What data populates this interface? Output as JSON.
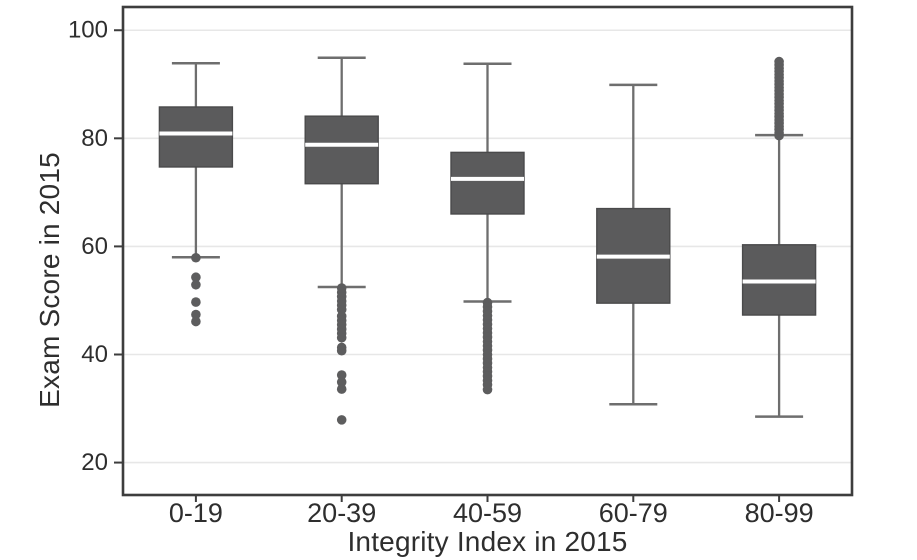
{
  "chart_data": {
    "type": "boxplot",
    "title": "",
    "xlabel": "Integrity Index in 2015",
    "ylabel": "Exam Score in 2015",
    "categories": [
      "0-19",
      "20-39",
      "40-59",
      "60-79",
      "80-99"
    ],
    "y_ticks": [
      20,
      40,
      60,
      80,
      100
    ],
    "ylim": [
      14,
      104.3
    ],
    "grid": true,
    "legend": "none",
    "series": [
      {
        "category": "0-19",
        "whisker_high": 93.9,
        "q3": 85.8,
        "median": 80.9,
        "q1": 74.7,
        "whisker_low": 58.0,
        "outliers": [
          57.9,
          54.3,
          52.9,
          49.7,
          47.4,
          46.1
        ]
      },
      {
        "category": "20-39",
        "whisker_high": 94.9,
        "q3": 84.1,
        "median": 78.8,
        "q1": 71.6,
        "whisker_low": 52.5,
        "outliers": [
          52.3,
          51.5,
          50.7,
          49.9,
          49.1,
          48.3,
          47.1,
          46.3,
          45.5,
          44.7,
          43.9,
          43.1,
          41.3,
          40.7,
          36.2,
          34.9,
          33.6,
          27.9
        ]
      },
      {
        "category": "40-59",
        "whisker_high": 93.8,
        "q3": 77.4,
        "median": 72.5,
        "q1": 66.0,
        "whisker_low": 49.8,
        "outliers": [
          49.6,
          48.8,
          48.0,
          47.2,
          46.4,
          45.6,
          44.8,
          44.0,
          43.2,
          42.4,
          41.6,
          40.8,
          40.0,
          39.2,
          38.4,
          37.6,
          36.8,
          36.0,
          35.2,
          34.4,
          33.5
        ]
      },
      {
        "category": "60-79",
        "whisker_high": 89.9,
        "q3": 67.0,
        "median": 58.1,
        "q1": 49.5,
        "whisker_low": 30.8,
        "outliers": []
      },
      {
        "category": "80-99",
        "whisker_high": 80.6,
        "q3": 60.3,
        "median": 53.5,
        "q1": 47.3,
        "whisker_low": 28.5,
        "outliers": [
          94.2,
          93.6,
          93.0,
          92.4,
          91.8,
          91.2,
          90.6,
          90.0,
          89.4,
          88.8,
          88.2,
          87.6,
          87.0,
          86.4,
          85.8,
          85.2,
          84.6,
          84.0,
          83.4,
          82.8,
          82.2,
          81.6,
          81.0,
          80.5
        ]
      }
    ],
    "colors": {
      "background": "#ffffff",
      "box_fill": "#5b5b5c",
      "box_stroke": "#4a4a4b",
      "median": "#ffffff",
      "whisker": "#6e6e6e",
      "outlier": "#5d5d5e",
      "gridline": "#e7e7e7",
      "frame": "#3d3d3d",
      "text": "#2e2e2e"
    }
  }
}
